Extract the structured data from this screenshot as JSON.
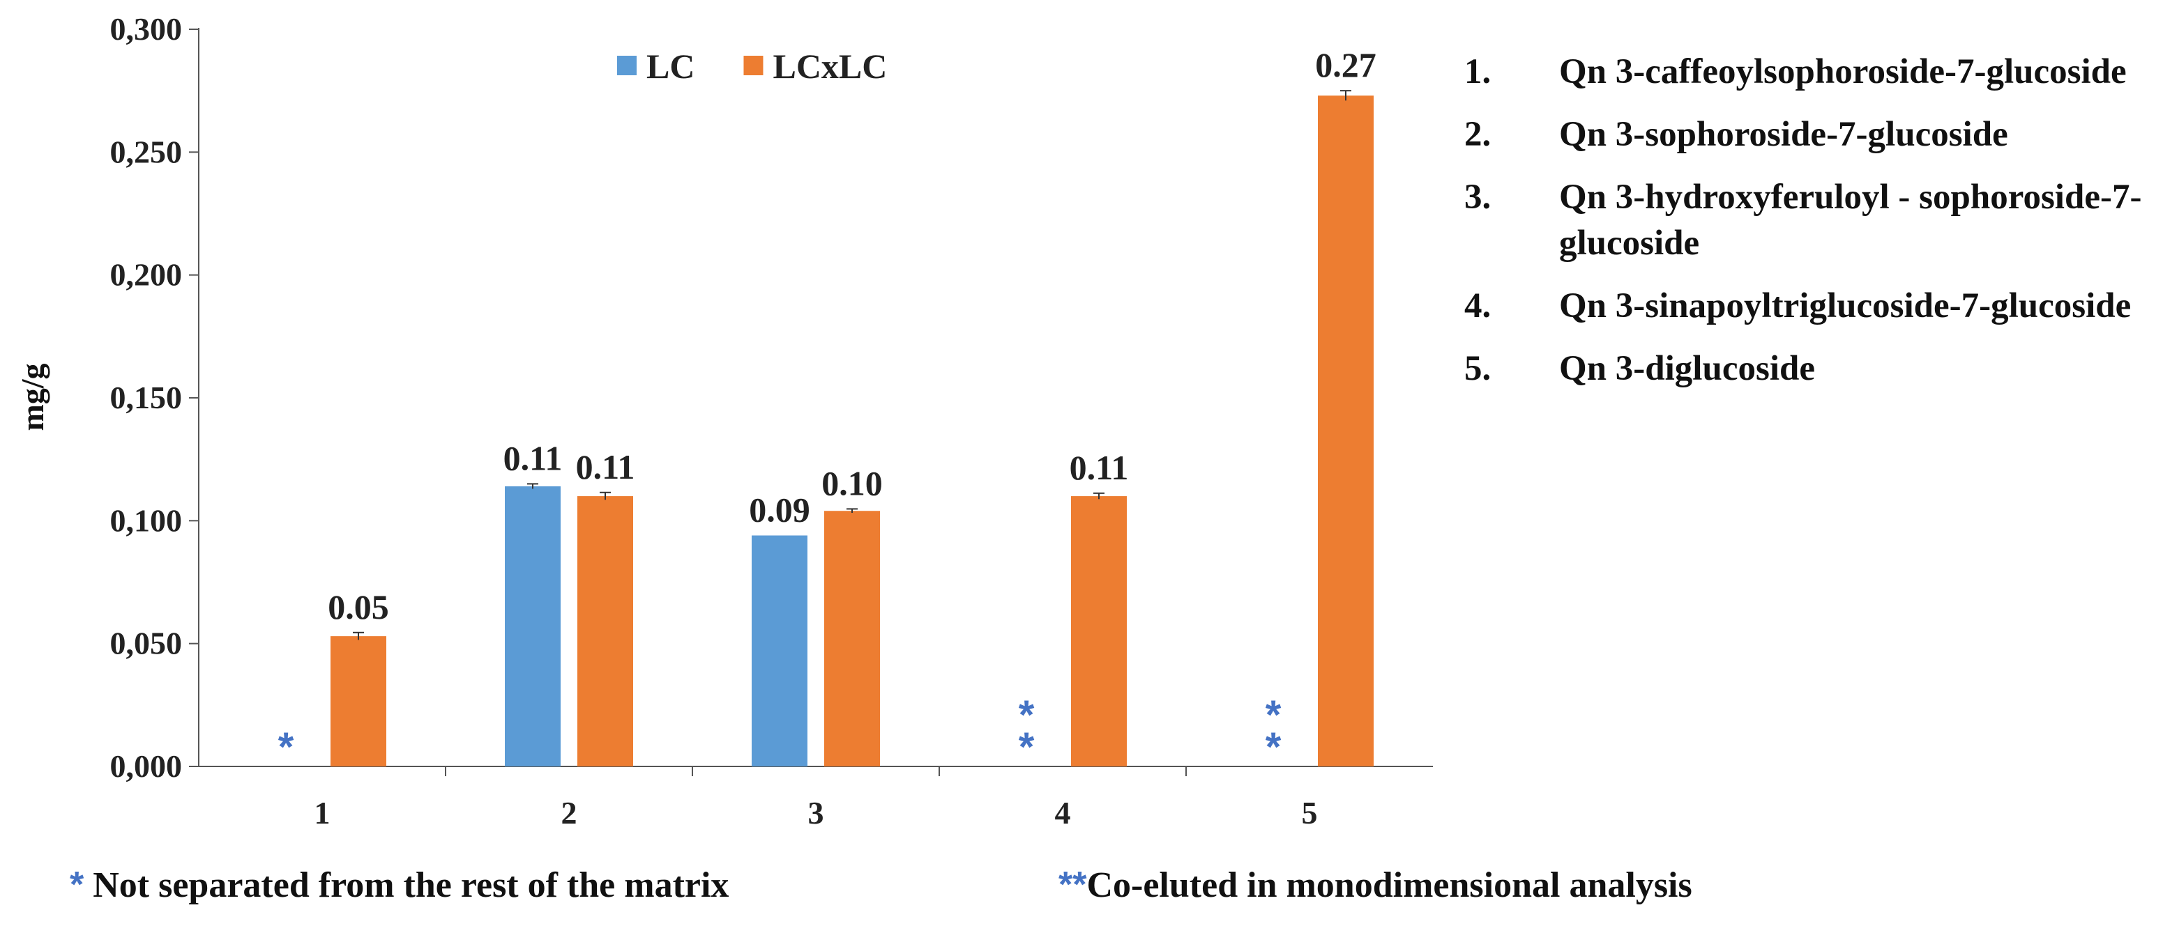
{
  "chart_data": {
    "type": "bar",
    "title": "",
    "xlabel": "",
    "ylabel": "mg/g",
    "ylim": [
      0,
      0.3
    ],
    "yticks": [
      "0,000",
      "0,050",
      "0,100",
      "0,150",
      "0,200",
      "0,250",
      "0,300"
    ],
    "categories": [
      "1",
      "2",
      "3",
      "4",
      "5"
    ],
    "series": [
      {
        "name": "LC",
        "color": "#5B9BD5",
        "values": [
          null,
          0.114,
          0.094,
          null,
          null
        ],
        "labels": [
          "",
          "0.11",
          "0.09",
          "",
          ""
        ],
        "errors": [
          0,
          0.001,
          0,
          0,
          0
        ]
      },
      {
        "name": "LCxLC",
        "color": "#ED7D31",
        "values": [
          0.053,
          0.11,
          0.104,
          0.11,
          0.273
        ],
        "labels": [
          "0.05",
          "0.11",
          "0.10",
          "0.11",
          "0.27"
        ],
        "errors": [
          0.0015,
          0.0015,
          0.0008,
          0.0012,
          0.002
        ]
      }
    ],
    "markers": [
      {
        "category": "1",
        "symbol": "*"
      },
      {
        "category": "4",
        "symbol": "**"
      },
      {
        "category": "5",
        "symbol": "**"
      }
    ],
    "legend_position": "top-center"
  },
  "compounds": [
    {
      "num": "1.",
      "name": "Qn 3-caffeoylsophoroside-7-glucoside"
    },
    {
      "num": "2.",
      "name": "Qn 3-sophoroside-7-glucoside"
    },
    {
      "num": "3.",
      "name": "Qn 3-hydroxyferuloyl - sophoroside-7-glucoside"
    },
    {
      "num": "4.",
      "name": "Qn 3-sinapoyltriglucoside-7-glucoside"
    },
    {
      "num": "5.",
      "name": "Qn 3-diglucoside"
    }
  ],
  "footnotes": {
    "single_mark": "*",
    "single_text": "Not separated from the rest of the matrix",
    "double_mark": "**",
    "double_text": "Co-eluted in monodimensional analysis"
  }
}
